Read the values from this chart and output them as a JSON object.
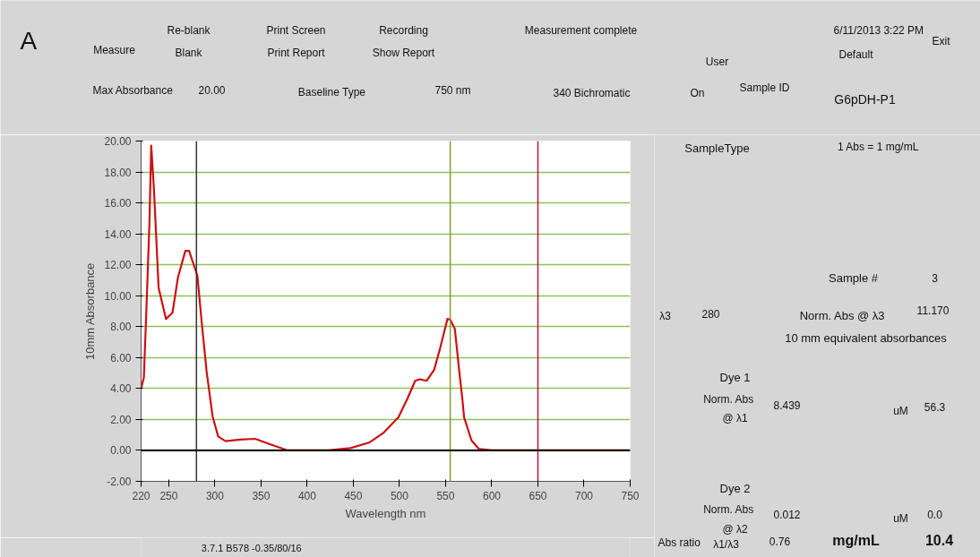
{
  "chart_data": {
    "type": "line",
    "xlabel": "Wavelength nm",
    "ylabel": "10mm Absorbance",
    "x": [
      220,
      223,
      225.5,
      229,
      231,
      234,
      239,
      247,
      254,
      260,
      268,
      272,
      281,
      286,
      291,
      297.5,
      303.5,
      311.5,
      327.5,
      343.5,
      359.5,
      379,
      423,
      447,
      467,
      483,
      499,
      509,
      517,
      522,
      529.5,
      537.5,
      544,
      552,
      555,
      560,
      565,
      568,
      570,
      578,
      586,
      600,
      750
    ],
    "series": [
      {
        "color": "#cc1111",
        "values": [
          4.0,
          4.7,
          8.7,
          14.6,
          19.7,
          16.8,
          10.5,
          8.5,
          8.9,
          11.2,
          12.9,
          12.9,
          11.3,
          8.1,
          5.1,
          2.2,
          0.9,
          0.6,
          0.7,
          0.75,
          0.4,
          0.0,
          0.0,
          0.15,
          0.5,
          1.15,
          2.15,
          3.4,
          4.5,
          4.6,
          4.5,
          5.2,
          6.6,
          8.5,
          8.45,
          7.85,
          5.0,
          3.4,
          2.15,
          0.65,
          0.1,
          0.0,
          0.0
        ]
      }
    ],
    "xlim": [
      220,
      750
    ],
    "ylim": [
      -2,
      20
    ],
    "xticks": [
      220,
      250,
      300,
      350,
      400,
      450,
      500,
      550,
      600,
      650,
      700,
      750
    ],
    "yticks": [
      {
        "value": -2,
        "label": "-2.00"
      },
      {
        "value": 0,
        "label": "0.00"
      },
      {
        "value": 2,
        "label": "2.00"
      },
      {
        "value": 4,
        "label": "4.00"
      },
      {
        "value": 6,
        "label": "6.00"
      },
      {
        "value": 8,
        "label": "8.00"
      },
      {
        "value": 10,
        "label": "10.00"
      },
      {
        "value": 12,
        "label": "12.00"
      },
      {
        "value": 14,
        "label": "14.00"
      },
      {
        "value": 16,
        "label": "16.00"
      },
      {
        "value": 18,
        "label": "18.00"
      },
      {
        "value": 20,
        "label": "20.00"
      }
    ],
    "grid": "y",
    "line_style": "solid",
    "ref_lines": [
      {
        "axis": "x",
        "value": 280,
        "color": "#333333"
      },
      {
        "axis": "x",
        "value": 555,
        "color": "#8a9a3a"
      },
      {
        "axis": "x",
        "value": 650,
        "color": "#c0143c"
      },
      {
        "axis": "y",
        "value": 0,
        "color": "#000000"
      }
    ],
    "annotations": [
      "A",
      "Measure",
      "Re-blank",
      "Blank",
      "Print Screen",
      "Print Report",
      "Recording",
      "Show Report",
      "Measurement complete",
      "6/11/2013  3:22 PM",
      "User",
      "Default",
      "Exit",
      "Max Absorbance",
      "20.00",
      "Baseline Type",
      "750 nm",
      "340 Bichromatic",
      "On",
      "Sample ID",
      "G6pDH-P1",
      "SampleType",
      "1 Abs = 1 mg/mL",
      "Sample #",
      "3",
      "λ3",
      "280",
      "Norm. Abs @ λ3",
      "11.170",
      "10 mm equivalent absorbances",
      "Dye 1",
      "Norm. Abs",
      "@ λ1",
      "8.439",
      "uM",
      "56.3",
      "Dye 2",
      "Norm. Abs",
      "@ λ2",
      "0.012",
      "uM",
      "0.0",
      "3.7.1 B578 -0.35/80/16",
      "Abs ratio",
      "λ1/λ3",
      "0.76",
      "mg/mL",
      "10.4"
    ]
  }
}
